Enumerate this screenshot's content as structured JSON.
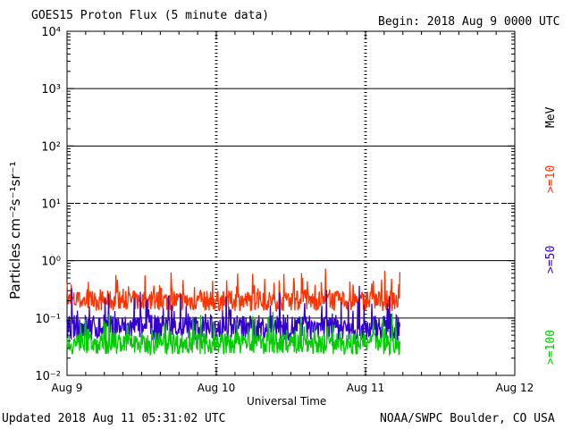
{
  "header": {
    "title": "GOES15 Proton Flux (5 minute data)",
    "begin": "Begin: 2018 Aug 9 0000 UTC"
  },
  "footer": {
    "updated": "Updated 2018 Aug 11 05:31:02 UTC",
    "credit": "NOAA/SWPC Boulder, CO USA"
  },
  "legend": {
    "unit": "MeV",
    "items": [
      {
        "label": ">=10",
        "color": "#ff3300"
      },
      {
        "label": ">=50",
        "color": "#3300cc"
      },
      {
        "label": ">=100",
        "color": "#00cc00"
      }
    ]
  },
  "chart_data": {
    "type": "line",
    "title": "GOES15 Proton Flux (5 minute data)",
    "xlabel": "Universal Time",
    "ylabel": "Particles cm⁻²s⁻¹sr⁻¹",
    "yscale": "log",
    "ylim": [
      0.01,
      10000
    ],
    "xlim_days": [
      0,
      3
    ],
    "data_end_day": 2.23,
    "x_ticks": [
      {
        "day": 0,
        "label": "Aug 9"
      },
      {
        "day": 1,
        "label": "Aug 10"
      },
      {
        "day": 2,
        "label": "Aug 11"
      },
      {
        "day": 3,
        "label": "Aug 12"
      }
    ],
    "y_ticks": [
      {
        "exp": -2,
        "label": "10⁻²"
      },
      {
        "exp": -1,
        "label": "10⁻¹"
      },
      {
        "exp": 0,
        "label": "10⁰"
      },
      {
        "exp": 1,
        "label": "10¹"
      },
      {
        "exp": 2,
        "label": "10²"
      },
      {
        "exp": 3,
        "label": "10³"
      },
      {
        "exp": 4,
        "label": "10⁴"
      }
    ],
    "threshold_lines": [
      {
        "exp": -1,
        "style": "solid"
      },
      {
        "exp": 0,
        "style": "solid"
      },
      {
        "exp": 1,
        "style": "dashed"
      },
      {
        "exp": 2,
        "style": "solid"
      },
      {
        "exp": 3,
        "style": "solid"
      }
    ],
    "series": [
      {
        "name": ">=10 MeV",
        "color": "#ff3300",
        "base": 0.2,
        "spread": 0.36
      },
      {
        "name": ">=50 MeV",
        "color": "#3300cc",
        "base": 0.068,
        "spread": 0.45
      },
      {
        "name": ">=100 MeV",
        "color": "#00cc00",
        "base": 0.036,
        "spread": 0.38
      }
    ]
  }
}
